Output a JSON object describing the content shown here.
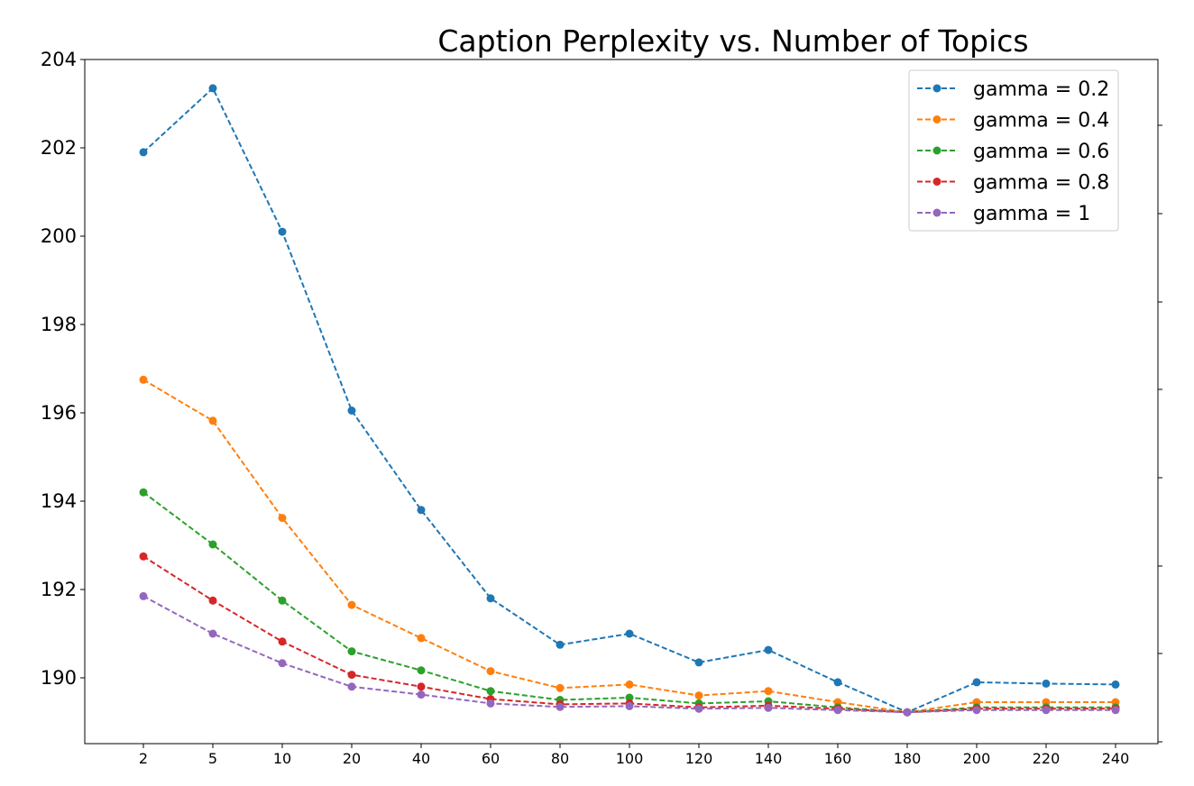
{
  "chart_data": {
    "type": "line",
    "title": "Caption Perplexity vs. Number of Topics",
    "xlabel": "",
    "ylabel": "",
    "categories": [
      "2",
      "5",
      "10",
      "20",
      "40",
      "60",
      "80",
      "100",
      "120",
      "140",
      "160",
      "180",
      "200",
      "220",
      "240"
    ],
    "y_ticks": [
      "190",
      "192",
      "194",
      "196",
      "198",
      "200",
      "202",
      "204"
    ],
    "ylim": [
      188.5,
      204.1
    ],
    "grid": false,
    "legend_position": "top-right",
    "line_style": "dashed",
    "marker": "circle",
    "series": [
      {
        "name": "gamma = 0.2",
        "color": "#1f77b4",
        "values": [
          201.9,
          203.35,
          200.1,
          196.05,
          193.8,
          191.8,
          190.75,
          191.0,
          190.35,
          190.63,
          189.9,
          189.22,
          189.9,
          189.87,
          189.85
        ]
      },
      {
        "name": "gamma = 0.4",
        "color": "#ff7f0e",
        "values": [
          196.75,
          195.82,
          193.62,
          191.65,
          190.9,
          190.15,
          189.77,
          189.85,
          189.6,
          189.7,
          189.45,
          189.22,
          189.45,
          189.45,
          189.45
        ]
      },
      {
        "name": "gamma = 0.6",
        "color": "#2ca02c",
        "values": [
          194.2,
          193.02,
          191.75,
          190.6,
          190.17,
          189.7,
          189.5,
          189.55,
          189.42,
          189.47,
          189.33,
          189.22,
          189.33,
          189.33,
          189.33
        ]
      },
      {
        "name": "gamma = 0.8",
        "color": "#d62728",
        "values": [
          192.75,
          191.75,
          190.82,
          190.07,
          189.8,
          189.52,
          189.4,
          189.42,
          189.33,
          189.37,
          189.3,
          189.22,
          189.3,
          189.3,
          189.3
        ]
      },
      {
        "name": "gamma = 1",
        "color": "#9467bd",
        "values": [
          191.85,
          191.0,
          190.33,
          189.8,
          189.62,
          189.42,
          189.34,
          189.36,
          189.3,
          189.32,
          189.27,
          189.22,
          189.27,
          189.27,
          189.27
        ]
      }
    ]
  }
}
